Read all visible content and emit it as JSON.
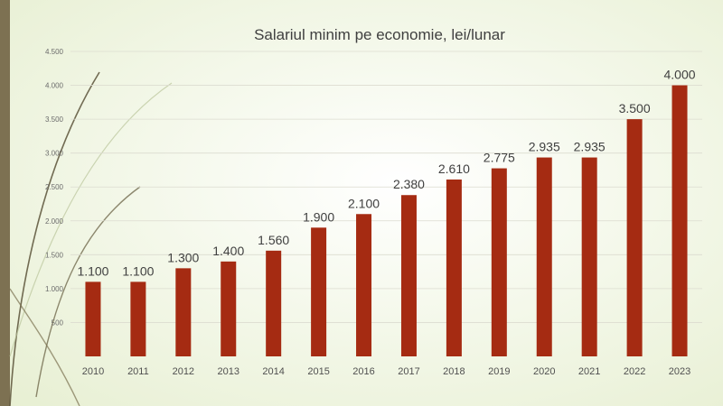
{
  "chart_data": {
    "type": "bar",
    "title": "Salariul minim pe economie, lei/lunar",
    "xlabel": "",
    "ylabel": "",
    "categories": [
      "2010",
      "2011",
      "2012",
      "2013",
      "2014",
      "2015",
      "2016",
      "2017",
      "2018",
      "2019",
      "2020",
      "2021",
      "2022",
      "2023"
    ],
    "values": [
      1100,
      1100,
      1300,
      1400,
      1560,
      1900,
      2100,
      2380,
      2610,
      2775,
      2935,
      2935,
      3500,
      4000
    ],
    "value_labels": [
      "1.100",
      "1.100",
      "1.300",
      "1.400",
      "1.560",
      "1.900",
      "2.100",
      "2.380",
      "2.610",
      "2.775",
      "2.935",
      "2.935",
      "3.500",
      "4.000"
    ],
    "ylim": [
      0,
      4500
    ],
    "yticks": [
      500,
      1000,
      1500,
      2000,
      2500,
      3000,
      3500,
      4000,
      4500
    ],
    "ytick_labels": [
      "500",
      "1.000",
      "1.500",
      "2.000",
      "2.500",
      "3.000",
      "3.500",
      "4.000",
      "4.500"
    ],
    "grid": true,
    "legend": "none",
    "bar_color": "#a52b12"
  }
}
